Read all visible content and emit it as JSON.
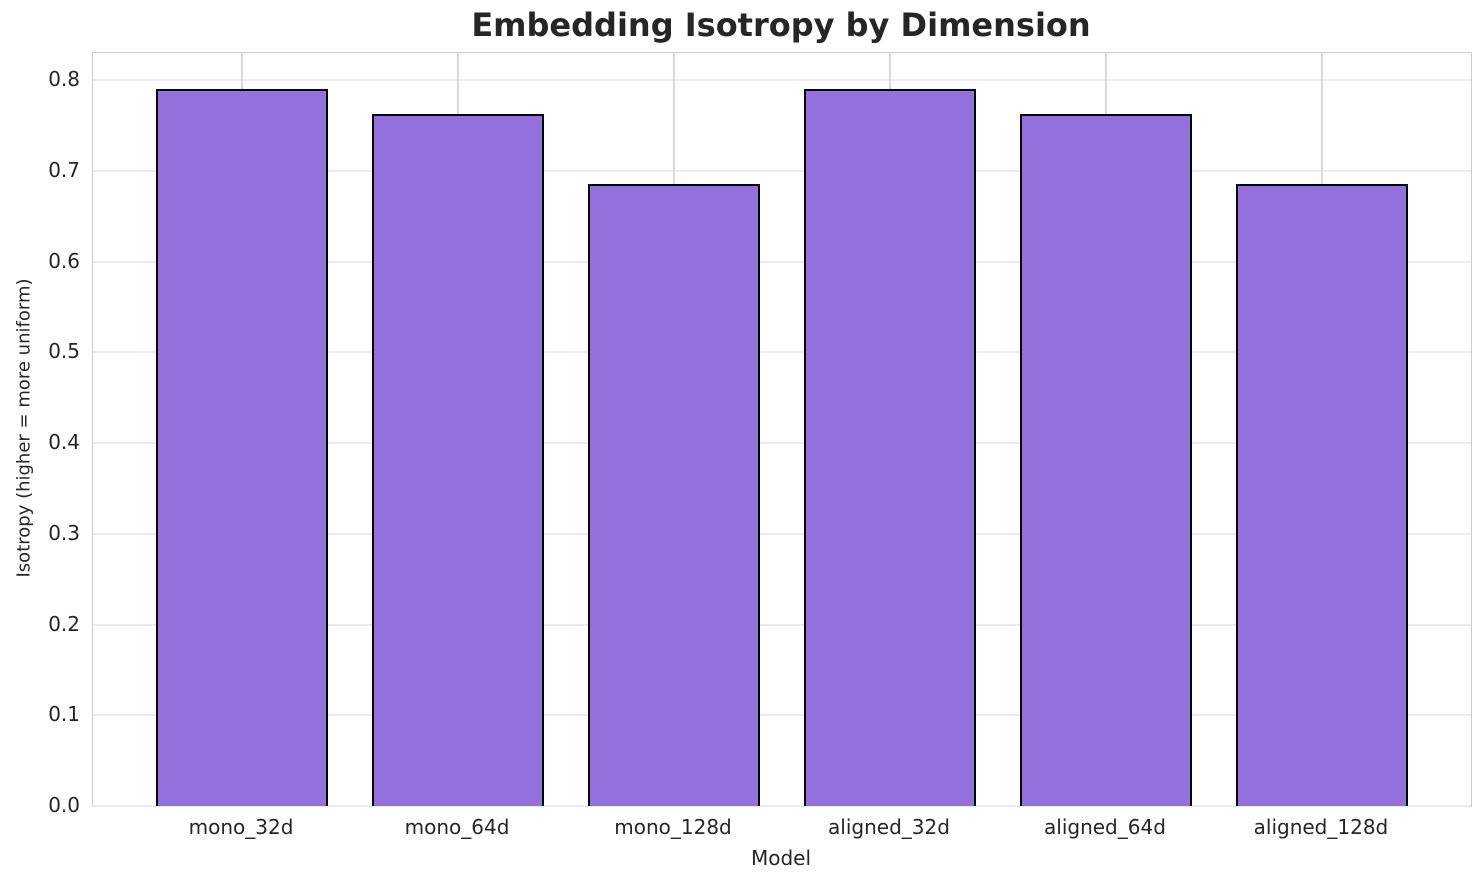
{
  "chart_data": {
    "type": "bar",
    "title": "Embedding Isotropy by Dimension",
    "xlabel": "Model",
    "ylabel": "Isotropy (higher = more uniform)",
    "categories": [
      "mono_32d",
      "mono_64d",
      "mono_128d",
      "aligned_32d",
      "aligned_64d",
      "aligned_128d"
    ],
    "values": [
      0.79,
      0.763,
      0.686,
      0.79,
      0.763,
      0.686
    ],
    "ylim": [
      0.0,
      0.83
    ],
    "yticks": [
      0.0,
      0.1,
      0.2,
      0.3,
      0.4,
      0.5,
      0.6,
      0.7,
      0.8
    ],
    "ytick_labels": [
      "0.0",
      "0.1",
      "0.2",
      "0.3",
      "0.4",
      "0.5",
      "0.6",
      "0.7",
      "0.8"
    ],
    "grid": true,
    "legend": null,
    "colors": {
      "bar_fill": "#9370DB",
      "bar_edge": "#000000",
      "h_grid": "#ececec",
      "v_grid": "#d9d9d9",
      "spine": "#cccccc",
      "text": "#262626",
      "background": "#ffffff"
    }
  }
}
